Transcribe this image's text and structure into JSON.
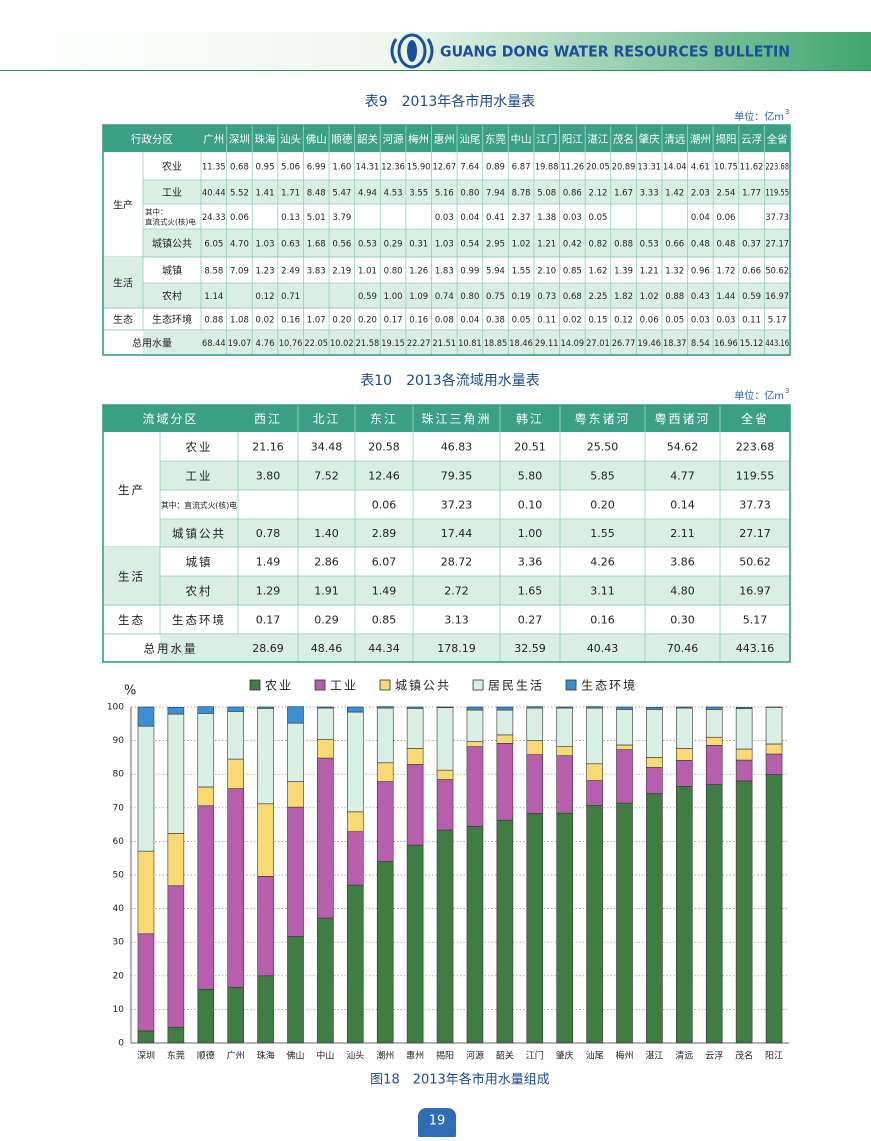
{
  "header": {
    "title": "GUANG DONG WATER RESOURCES BULLETIN"
  },
  "table9": {
    "title": "表9　2013年各市用水量表",
    "unit": "单位：亿m",
    "unit_sup": "3",
    "header": [
      "行政分区",
      "广州",
      "深圳",
      "珠海",
      "汕头",
      "佛山",
      "顺德",
      "韶关",
      "河源",
      "梅州",
      "惠州",
      "汕尾",
      "东莞",
      "中山",
      "江门",
      "阳江",
      "湛江",
      "茂名",
      "肇庆",
      "清远",
      "潮州",
      "揭阳",
      "云浮",
      "全省"
    ],
    "groups": [
      {
        "label": "生产",
        "items": [
          {
            "label": "农业",
            "values": [
              "11.35",
              "0.68",
              "0.95",
              "5.06",
              "6.99",
              "1.60",
              "14.31",
              "12.36",
              "15.90",
              "12.67",
              "7.64",
              "0.89",
              "6.87",
              "19.88",
              "11.26",
              "20.05",
              "20.89",
              "13.31",
              "14.04",
              "4.61",
              "10.75",
              "11.62",
              "223.68"
            ]
          },
          {
            "label": "工业",
            "values": [
              "40.44",
              "5.52",
              "1.41",
              "1.71",
              "8.48",
              "5.47",
              "4.94",
              "4.53",
              "3.55",
              "5.16",
              "0.80",
              "7.94",
              "8.78",
              "5.08",
              "0.86",
              "2.12",
              "1.67",
              "3.33",
              "1.42",
              "2.03",
              "2.54",
              "1.77",
              "119.55"
            ]
          },
          {
            "label": [
              "其中：",
              "直流式火(核)电"
            ],
            "values": [
              "24.33",
              "0.06",
              null,
              "0.13",
              "5.01",
              "3.79",
              null,
              null,
              null,
              "0.03",
              "0.04",
              "0.41",
              "2.37",
              "1.38",
              "0.03",
              "0.05",
              null,
              null,
              null,
              "0.04",
              "0.06",
              null,
              "37.73"
            ]
          },
          {
            "label": "城镇公共",
            "values": [
              "6.05",
              "4.70",
              "1.03",
              "0.63",
              "1.68",
              "0.56",
              "0.53",
              "0.29",
              "0.31",
              "1.03",
              "0.54",
              "2.95",
              "1.02",
              "1.21",
              "0.42",
              "0.82",
              "0.88",
              "0.53",
              "0.66",
              "0.48",
              "0.48",
              "0.37",
              "27.17"
            ]
          }
        ]
      },
      {
        "label": "生活",
        "items": [
          {
            "label": "城镇",
            "values": [
              "8.58",
              "7.09",
              "1.23",
              "2.49",
              "3.83",
              "2.19",
              "1.01",
              "0.80",
              "1.26",
              "1.83",
              "0.99",
              "5.94",
              "1.55",
              "2.10",
              "0.85",
              "1.62",
              "1.39",
              "1.21",
              "1.32",
              "0.96",
              "1.72",
              "0.66",
              "50.62"
            ]
          },
          {
            "label": "农村",
            "values": [
              "1.14",
              null,
              "0.12",
              "0.71",
              null,
              null,
              "0.59",
              "1.00",
              "1.09",
              "0.74",
              "0.80",
              "0.75",
              "0.19",
              "0.73",
              "0.68",
              "2.25",
              "1.82",
              "1.02",
              "0.88",
              "0.43",
              "1.44",
              "0.59",
              "16.97"
            ]
          }
        ]
      },
      {
        "label": "生态",
        "items": [
          {
            "label": "生态环境",
            "values": [
              "0.88",
              "1.08",
              "0.02",
              "0.16",
              "1.07",
              "0.20",
              "0.20",
              "0.17",
              "0.16",
              "0.08",
              "0.04",
              "0.38",
              "0.05",
              "0.11",
              "0.02",
              "0.15",
              "0.12",
              "0.06",
              "0.05",
              "0.03",
              "0.03",
              "0.11",
              "5.17"
            ]
          }
        ]
      }
    ],
    "total": {
      "label": "总用水量",
      "values": [
        "68.44",
        "19.07",
        "4.76",
        "10.76",
        "22.05",
        "10.02",
        "21.58",
        "19.15",
        "22.27",
        "21.51",
        "10.81",
        "18.85",
        "18.46",
        "29.11",
        "14.09",
        "27.01",
        "26.77",
        "19.46",
        "18.37",
        "8.54",
        "16.96",
        "15.12",
        "443.16"
      ]
    }
  },
  "table10": {
    "title": "表10　2013各流域用水量表",
    "unit": "单位：亿m",
    "unit_sup": "3",
    "header": [
      "流域分区",
      "西江",
      "北江",
      "东江",
      "珠江三角洲",
      "韩江",
      "粤东诸河",
      "粤西诸河",
      "全省"
    ],
    "groups": [
      {
        "label": "生产",
        "items": [
          {
            "label": "农业",
            "values": [
              "21.16",
              "34.48",
              "20.58",
              "46.83",
              "20.51",
              "25.50",
              "54.62",
              "223.68"
            ]
          },
          {
            "label": "工业",
            "values": [
              "3.80",
              "7.52",
              "12.46",
              "79.35",
              "5.80",
              "5.85",
              "4.77",
              "119.55"
            ]
          },
          {
            "label": "其中：直流式火(核)电",
            "values": [
              null,
              null,
              "0.06",
              "37.23",
              "0.10",
              "0.20",
              "0.14",
              "37.73"
            ]
          },
          {
            "label": "城镇公共",
            "values": [
              "0.78",
              "1.40",
              "2.89",
              "17.44",
              "1.00",
              "1.55",
              "2.11",
              "27.17"
            ]
          }
        ]
      },
      {
        "label": "生活",
        "items": [
          {
            "label": "城镇",
            "values": [
              "1.49",
              "2.86",
              "6.07",
              "28.72",
              "3.36",
              "4.26",
              "3.86",
              "50.62"
            ]
          },
          {
            "label": "农村",
            "values": [
              "1.29",
              "1.91",
              "1.49",
              "2.72",
              "1.65",
              "3.11",
              "4.80",
              "16.97"
            ]
          }
        ]
      },
      {
        "label": "生态",
        "items": [
          {
            "label": "生态环境",
            "values": [
              "0.17",
              "0.29",
              "0.85",
              "3.13",
              "0.27",
              "0.16",
              "0.30",
              "5.17"
            ]
          }
        ]
      }
    ],
    "total": {
      "label": "总用水量",
      "values": [
        "28.69",
        "48.46",
        "44.34",
        "178.19",
        "32.59",
        "40.43",
        "70.46",
        "443.16"
      ]
    }
  },
  "chart_data": {
    "type": "bar",
    "stacked": true,
    "title": "图18　2013年各市用水量组成",
    "y_label": "%",
    "legend": "top",
    "grid": true,
    "categories": [
      "深圳",
      "东莞",
      "顺德",
      "广州",
      "珠海",
      "佛山",
      "中山",
      "汕头",
      "潮州",
      "惠州",
      "揭阳",
      "河源",
      "韶关",
      "江门",
      "肇庆",
      "汕尾",
      "梅州",
      "湛江",
      "清远",
      "云浮",
      "茂名",
      "阳江"
    ],
    "series": [
      {
        "name": "农业",
        "color": "#3f7d43",
        "values": [
          3.6,
          4.7,
          16.0,
          16.6,
          20.0,
          31.7,
          37.2,
          47.0,
          54.0,
          58.9,
          63.4,
          64.5,
          66.3,
          68.3,
          68.4,
          70.7,
          71.4,
          74.2,
          76.4,
          76.9,
          78.0,
          79.9
        ]
      },
      {
        "name": "工业",
        "color": "#b75fac",
        "values": [
          28.9,
          42.1,
          54.6,
          59.1,
          29.6,
          38.5,
          47.6,
          15.9,
          23.8,
          24.0,
          15.0,
          23.7,
          22.9,
          17.5,
          17.1,
          7.4,
          15.9,
          7.8,
          7.7,
          11.7,
          6.2,
          6.1
        ]
      },
      {
        "name": "城镇公共",
        "color": "#f8da74",
        "values": [
          24.6,
          15.6,
          5.6,
          8.8,
          21.6,
          7.6,
          5.5,
          5.9,
          5.6,
          4.8,
          2.8,
          1.5,
          2.5,
          4.2,
          2.7,
          5.0,
          1.4,
          3.0,
          3.6,
          2.4,
          3.3,
          3.0
        ]
      },
      {
        "name": "居民生活",
        "color": "#d8f0e4",
        "values": [
          37.2,
          35.5,
          21.9,
          14.2,
          28.4,
          17.4,
          9.4,
          29.7,
          16.3,
          11.9,
          18.6,
          9.4,
          7.4,
          9.7,
          11.5,
          16.6,
          10.6,
          14.3,
          12.0,
          8.3,
          12.0,
          10.9
        ]
      },
      {
        "name": "生态环境",
        "color": "#3b8fd4",
        "values": [
          5.7,
          2.0,
          2.0,
          1.3,
          0.4,
          4.9,
          0.3,
          1.5,
          0.4,
          0.4,
          0.2,
          0.9,
          0.9,
          0.4,
          0.3,
          0.4,
          0.7,
          0.6,
          0.3,
          0.7,
          0.4,
          0.1
        ]
      }
    ],
    "ylim": [
      0,
      100
    ],
    "yticks": [
      0,
      10,
      20,
      30,
      40,
      50,
      60,
      70,
      80,
      90,
      100
    ]
  },
  "page": "19"
}
